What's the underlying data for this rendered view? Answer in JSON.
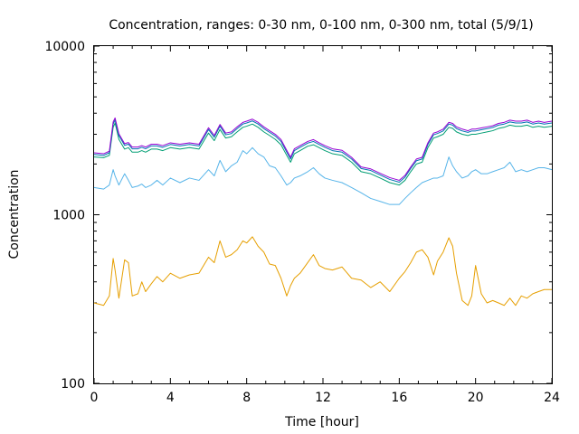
{
  "chart_data": {
    "type": "line",
    "title": "Concentration, ranges: 0-30 nm, 0-100 nm, 0-300 nm, total (5/9/1)",
    "xlabel": "Time [hour]",
    "ylabel": "Concentration",
    "xlim": [
      0,
      24
    ],
    "ylim": [
      100,
      10000
    ],
    "yscale": "log",
    "grid": false,
    "x_ticks": [
      "0",
      "4",
      "8",
      "12",
      "16",
      "20",
      "24"
    ],
    "y_ticks": [
      "100",
      "1000",
      "10000"
    ],
    "series": [
      {
        "color": "#e69f00",
        "x": [
          0,
          0.5,
          0.8,
          1.0,
          1.1,
          1.3,
          1.6,
          1.8,
          2.0,
          2.3,
          2.5,
          2.7,
          3.0,
          3.3,
          3.6,
          4.0,
          4.5,
          5.0,
          5.5,
          6.0,
          6.3,
          6.6,
          6.9,
          7.2,
          7.5,
          7.8,
          8.0,
          8.3,
          8.6,
          8.9,
          9.2,
          9.5,
          9.8,
          10.1,
          10.3,
          10.5,
          10.8,
          11.2,
          11.5,
          11.8,
          12.1,
          12.5,
          13.0,
          13.5,
          14.0,
          14.5,
          15.0,
          15.5,
          16.0,
          16.3,
          16.6,
          16.9,
          17.2,
          17.5,
          17.8,
          18.0,
          18.3,
          18.6,
          18.8,
          19.0,
          19.3,
          19.6,
          19.8,
          20.0,
          20.3,
          20.6,
          20.9,
          21.2,
          21.5,
          21.8,
          22.1,
          22.4,
          22.7,
          23.0,
          23.3,
          23.6,
          24.0
        ],
        "y": [
          300,
          290,
          330,
          550,
          470,
          320,
          540,
          520,
          330,
          340,
          400,
          350,
          390,
          430,
          400,
          450,
          420,
          440,
          450,
          560,
          520,
          700,
          560,
          580,
          620,
          700,
          680,
          740,
          650,
          600,
          510,
          500,
          420,
          330,
          380,
          420,
          450,
          520,
          580,
          500,
          480,
          470,
          490,
          420,
          410,
          370,
          400,
          350,
          420,
          460,
          520,
          600,
          620,
          560,
          440,
          530,
          600,
          730,
          650,
          450,
          310,
          290,
          330,
          500,
          340,
          300,
          310,
          300,
          290,
          320,
          290,
          330,
          320,
          340,
          350,
          360,
          360
        ]
      },
      {
        "color": "#56b4e9",
        "x": [
          0,
          0.5,
          0.8,
          1.0,
          1.1,
          1.3,
          1.6,
          1.8,
          2.0,
          2.3,
          2.5,
          2.7,
          3.0,
          3.3,
          3.6,
          4.0,
          4.5,
          5.0,
          5.5,
          6.0,
          6.3,
          6.6,
          6.9,
          7.2,
          7.5,
          7.8,
          8.0,
          8.3,
          8.6,
          8.9,
          9.2,
          9.5,
          9.8,
          10.1,
          10.3,
          10.5,
          10.8,
          11.2,
          11.5,
          11.8,
          12.1,
          12.5,
          13.0,
          13.5,
          14.0,
          14.5,
          15.0,
          15.5,
          16.0,
          16.3,
          16.6,
          16.9,
          17.2,
          17.5,
          17.8,
          18.0,
          18.3,
          18.6,
          18.8,
          19.0,
          19.3,
          19.6,
          19.8,
          20.0,
          20.3,
          20.6,
          20.9,
          21.2,
          21.5,
          21.8,
          22.1,
          22.4,
          22.7,
          23.0,
          23.3,
          23.6,
          24.0
        ],
        "y": [
          1450,
          1420,
          1500,
          1850,
          1700,
          1500,
          1750,
          1600,
          1450,
          1480,
          1520,
          1450,
          1500,
          1600,
          1500,
          1650,
          1550,
          1650,
          1600,
          1850,
          1700,
          2100,
          1800,
          1950,
          2050,
          2400,
          2300,
          2500,
          2300,
          2200,
          1950,
          1900,
          1700,
          1500,
          1550,
          1650,
          1700,
          1800,
          1900,
          1750,
          1650,
          1600,
          1550,
          1450,
          1350,
          1250,
          1200,
          1150,
          1150,
          1250,
          1350,
          1450,
          1550,
          1600,
          1650,
          1650,
          1700,
          2200,
          1950,
          1800,
          1650,
          1700,
          1800,
          1850,
          1750,
          1750,
          1800,
          1850,
          1900,
          2050,
          1800,
          1850,
          1800,
          1850,
          1900,
          1900,
          1850
        ]
      },
      {
        "color": "#009e73",
        "x": [
          0,
          0.5,
          0.8,
          1.0,
          1.1,
          1.3,
          1.6,
          1.8,
          2.0,
          2.3,
          2.5,
          2.7,
          3.0,
          3.3,
          3.6,
          4.0,
          4.5,
          5.0,
          5.5,
          6.0,
          6.3,
          6.6,
          6.9,
          7.2,
          7.5,
          7.8,
          8.0,
          8.3,
          8.6,
          8.9,
          9.2,
          9.5,
          9.8,
          10.1,
          10.3,
          10.5,
          10.8,
          11.2,
          11.5,
          11.8,
          12.1,
          12.5,
          13.0,
          13.5,
          14.0,
          14.5,
          15.0,
          15.5,
          16.0,
          16.3,
          16.6,
          16.9,
          17.2,
          17.5,
          17.8,
          18.0,
          18.3,
          18.6,
          18.8,
          19.0,
          19.3,
          19.6,
          19.8,
          20.0,
          20.3,
          20.6,
          20.9,
          21.2,
          21.5,
          21.8,
          22.1,
          22.4,
          22.7,
          23.0,
          23.3,
          23.6,
          24.0
        ],
        "y": [
          2200,
          2180,
          2250,
          3300,
          3500,
          2800,
          2450,
          2500,
          2350,
          2350,
          2400,
          2350,
          2450,
          2450,
          2400,
          2500,
          2450,
          2500,
          2450,
          3050,
          2750,
          3200,
          2850,
          2900,
          3100,
          3300,
          3350,
          3450,
          3300,
          3100,
          2950,
          2800,
          2600,
          2250,
          2050,
          2300,
          2400,
          2550,
          2600,
          2500,
          2400,
          2300,
          2250,
          2050,
          1800,
          1750,
          1650,
          1550,
          1500,
          1600,
          1800,
          2000,
          2050,
          2500,
          2850,
          2900,
          3000,
          3300,
          3250,
          3100,
          3000,
          2950,
          3000,
          3000,
          3050,
          3100,
          3150,
          3250,
          3300,
          3400,
          3350,
          3350,
          3400,
          3300,
          3350,
          3300,
          3350
        ]
      },
      {
        "color": "#0072b2",
        "x": [
          0,
          0.5,
          0.8,
          1.0,
          1.1,
          1.3,
          1.6,
          1.8,
          2.0,
          2.3,
          2.5,
          2.7,
          3.0,
          3.3,
          3.6,
          4.0,
          4.5,
          5.0,
          5.5,
          6.0,
          6.3,
          6.6,
          6.9,
          7.2,
          7.5,
          7.8,
          8.0,
          8.3,
          8.6,
          8.9,
          9.2,
          9.5,
          9.8,
          10.1,
          10.3,
          10.5,
          10.8,
          11.2,
          11.5,
          11.8,
          12.1,
          12.5,
          13.0,
          13.5,
          14.0,
          14.5,
          15.0,
          15.5,
          16.0,
          16.3,
          16.6,
          16.9,
          17.2,
          17.5,
          17.8,
          18.0,
          18.3,
          18.6,
          18.8,
          19.0,
          19.3,
          19.6,
          19.8,
          20.0,
          20.3,
          20.6,
          20.9,
          21.2,
          21.5,
          21.8,
          22.1,
          22.4,
          22.7,
          23.0,
          23.3,
          23.6,
          24.0
        ],
        "y": [
          2280,
          2250,
          2330,
          3450,
          3650,
          2950,
          2580,
          2620,
          2460,
          2460,
          2510,
          2460,
          2560,
          2560,
          2510,
          2610,
          2560,
          2610,
          2560,
          3200,
          2880,
          3350,
          2980,
          3030,
          3240,
          3450,
          3500,
          3600,
          3450,
          3240,
          3080,
          2930,
          2720,
          2350,
          2140,
          2400,
          2510,
          2660,
          2720,
          2610,
          2510,
          2400,
          2350,
          2140,
          1880,
          1830,
          1720,
          1620,
          1560,
          1670,
          1880,
          2090,
          2140,
          2610,
          2980,
          3030,
          3140,
          3450,
          3400,
          3240,
          3140,
          3080,
          3140,
          3140,
          3190,
          3240,
          3290,
          3400,
          3450,
          3550,
          3500,
          3500,
          3550,
          3450,
          3500,
          3450,
          3500
        ]
      },
      {
        "color": "#9400d3",
        "x": [
          0,
          0.5,
          0.8,
          1.0,
          1.1,
          1.3,
          1.6,
          1.8,
          2.0,
          2.3,
          2.5,
          2.7,
          3.0,
          3.3,
          3.6,
          4.0,
          4.5,
          5.0,
          5.5,
          6.0,
          6.3,
          6.6,
          6.9,
          7.2,
          7.5,
          7.8,
          8.0,
          8.3,
          8.6,
          8.9,
          9.2,
          9.5,
          9.8,
          10.1,
          10.3,
          10.5,
          10.8,
          11.2,
          11.5,
          11.8,
          12.1,
          12.5,
          13.0,
          13.5,
          14.0,
          14.5,
          15.0,
          15.5,
          16.0,
          16.3,
          16.6,
          16.9,
          17.2,
          17.5,
          17.8,
          18.0,
          18.3,
          18.6,
          18.8,
          19.0,
          19.3,
          19.6,
          19.8,
          20.0,
          20.3,
          20.6,
          20.9,
          21.2,
          21.5,
          21.8,
          22.1,
          22.4,
          22.7,
          23.0,
          23.3,
          23.6,
          24.0
        ],
        "y": [
          2330,
          2300,
          2380,
          3550,
          3750,
          3020,
          2640,
          2680,
          2520,
          2520,
          2570,
          2520,
          2620,
          2620,
          2570,
          2670,
          2620,
          2670,
          2620,
          3280,
          2950,
          3430,
          3050,
          3100,
          3320,
          3530,
          3590,
          3690,
          3530,
          3320,
          3150,
          3000,
          2790,
          2410,
          2190,
          2460,
          2570,
          2720,
          2790,
          2670,
          2570,
          2460,
          2410,
          2190,
          1920,
          1870,
          1760,
          1660,
          1600,
          1710,
          1920,
          2140,
          2190,
          2670,
          3050,
          3100,
          3220,
          3530,
          3480,
          3320,
          3220,
          3150,
          3220,
          3220,
          3270,
          3320,
          3370,
          3480,
          3530,
          3640,
          3590,
          3590,
          3640,
          3530,
          3590,
          3530,
          3590
        ]
      }
    ]
  }
}
